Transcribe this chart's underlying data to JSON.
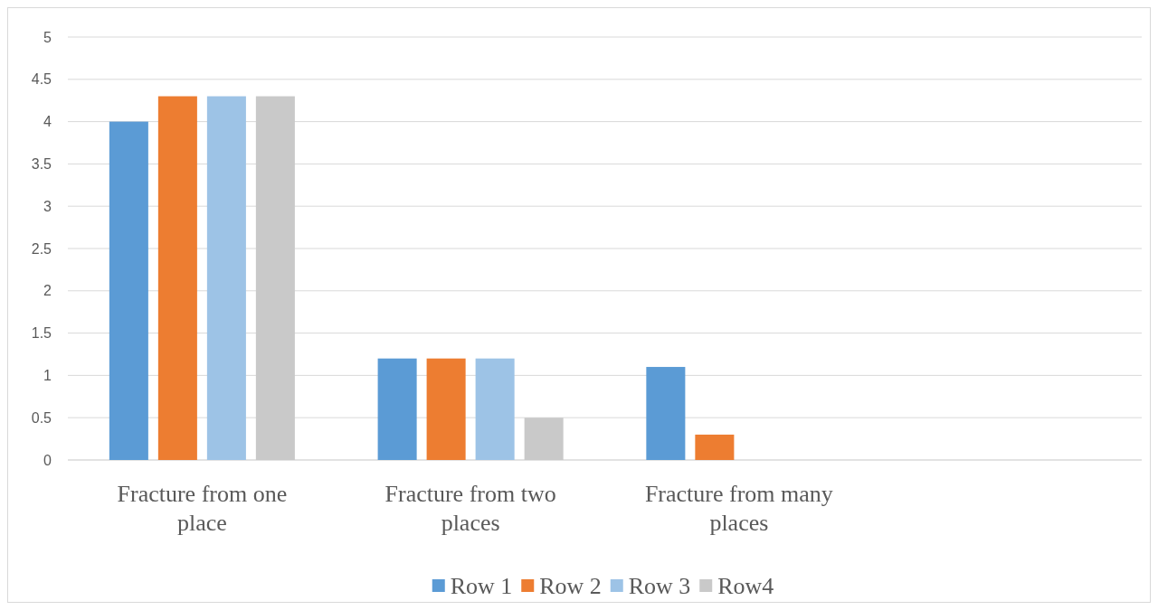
{
  "chart_data": {
    "type": "bar",
    "categories": [
      "Fracture from one place",
      "Fracture from two places",
      "Fracture from many places",
      null
    ],
    "series": [
      {
        "name": "Row 1",
        "color": "#5b9bd5",
        "values": [
          4,
          1.2,
          1.1,
          null
        ]
      },
      {
        "name": "Row 2",
        "color": "#ed7d31",
        "values": [
          4.3,
          1.2,
          0.3,
          null
        ]
      },
      {
        "name": "Row 3",
        "color": "#9dc3e6",
        "values": [
          4.3,
          1.2,
          null,
          null
        ]
      },
      {
        "name": "Row4",
        "color": "#c9c9c9",
        "values": [
          4.3,
          0.5,
          null,
          null
        ]
      }
    ],
    "ylim": [
      0,
      5
    ],
    "yticks": [
      0,
      0.5,
      1,
      1.5,
      2,
      2.5,
      3,
      3.5,
      4,
      4.5,
      5
    ],
    "grid": "y",
    "legend": "bottom"
  }
}
